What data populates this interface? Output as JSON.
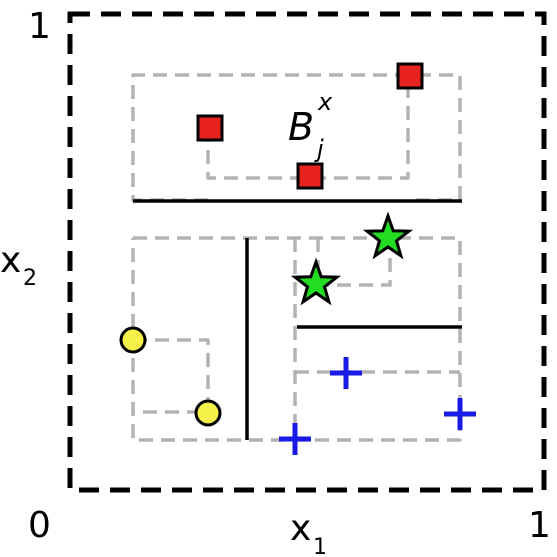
{
  "labels": {
    "corner_top": "1",
    "corner_origin": "0",
    "corner_right": "1",
    "x1_base": "x",
    "x1_sub": "1",
    "x2_base": "x",
    "x2_sub": "2",
    "box_base": "B",
    "box_sub": "j",
    "box_sup": "x"
  },
  "colors": {
    "outer_box": "#000000",
    "dashed_region": "#b3b3b3",
    "split_line": "#000000",
    "square_fill": "#e8231f",
    "star_fill": "#22dd22",
    "circle_fill": "#f5f04a",
    "plus": "#1a1ae6"
  },
  "markers": {
    "squares": 3,
    "stars": 2,
    "circles": 2,
    "pluses": 3
  }
}
